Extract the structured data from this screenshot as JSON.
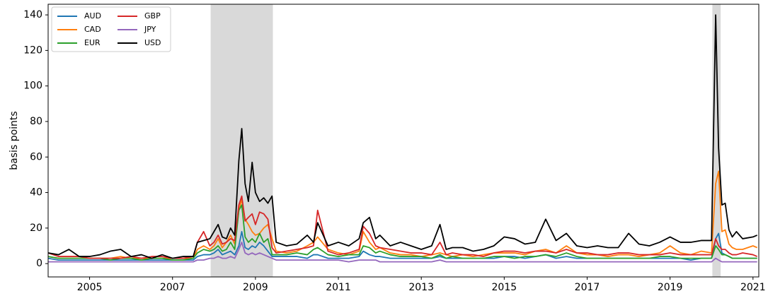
{
  "chart_data": {
    "type": "line",
    "y_label": "basis points",
    "x": [
      2004.0,
      2004.25,
      2004.5,
      2004.75,
      2005.0,
      2005.25,
      2005.5,
      2005.75,
      2006.0,
      2006.25,
      2006.5,
      2006.75,
      2007.0,
      2007.25,
      2007.5,
      2007.6,
      2007.75,
      2007.9,
      2008.0,
      2008.1,
      2008.2,
      2008.3,
      2008.4,
      2008.5,
      2008.6,
      2008.67,
      2008.75,
      2008.83,
      2008.92,
      2009.0,
      2009.1,
      2009.2,
      2009.3,
      2009.4,
      2009.5,
      2009.75,
      2010.0,
      2010.25,
      2010.4,
      2010.5,
      2010.75,
      2011.0,
      2011.25,
      2011.5,
      2011.6,
      2011.75,
      2011.9,
      2012.0,
      2012.25,
      2012.5,
      2012.75,
      2013.0,
      2013.25,
      2013.45,
      2013.6,
      2013.75,
      2014.0,
      2014.25,
      2014.5,
      2014.75,
      2015.0,
      2015.25,
      2015.5,
      2015.75,
      2016.0,
      2016.25,
      2016.5,
      2016.75,
      2017.0,
      2017.25,
      2017.5,
      2017.75,
      2018.0,
      2018.25,
      2018.5,
      2018.75,
      2019.0,
      2019.25,
      2019.5,
      2019.75,
      2020.0,
      2020.1,
      2020.17,
      2020.25,
      2020.33,
      2020.42,
      2020.5,
      2020.6,
      2020.75,
      2021.0,
      2021.1
    ],
    "series": [
      {
        "name": "AUD",
        "color": "#1f77b4",
        "values": [
          3,
          2,
          2,
          2,
          2,
          2,
          2,
          2,
          2,
          2,
          2,
          2,
          2,
          2,
          2,
          4,
          5,
          5,
          6,
          8,
          5,
          6,
          7,
          5,
          10,
          18,
          9,
          8,
          10,
          9,
          12,
          10,
          7,
          4,
          4,
          4,
          4,
          3,
          5,
          5,
          3,
          3,
          3,
          4,
          7,
          5,
          4,
          4,
          3,
          3,
          3,
          3,
          3,
          4,
          3,
          3,
          3,
          3,
          3,
          3,
          4,
          4,
          3,
          4,
          5,
          3,
          4,
          3,
          3,
          3,
          3,
          3,
          3,
          3,
          3,
          3,
          3,
          3,
          2,
          3,
          3,
          14,
          17,
          6,
          5,
          4,
          3,
          3,
          3,
          3,
          3
        ]
      },
      {
        "name": "CAD",
        "color": "#ff7f0e",
        "values": [
          4,
          3,
          3,
          3,
          3,
          3,
          3,
          4,
          3,
          3,
          3,
          3,
          3,
          3,
          3,
          8,
          10,
          8,
          10,
          14,
          9,
          12,
          16,
          11,
          30,
          36,
          25,
          22,
          18,
          16,
          17,
          20,
          22,
          14,
          7,
          6,
          7,
          10,
          12,
          15,
          8,
          6,
          5,
          7,
          18,
          12,
          8,
          9,
          6,
          5,
          5,
          4,
          5,
          6,
          5,
          4,
          5,
          4,
          5,
          6,
          6,
          6,
          5,
          7,
          8,
          6,
          10,
          6,
          5,
          5,
          4,
          5,
          5,
          4,
          5,
          6,
          10,
          6,
          5,
          7,
          6,
          45,
          52,
          18,
          19,
          11,
          9,
          8,
          8,
          10,
          9
        ]
      },
      {
        "name": "EUR",
        "color": "#2ca02c",
        "values": [
          4,
          3,
          3,
          3,
          3,
          3,
          2,
          3,
          3,
          2,
          3,
          3,
          2,
          2,
          3,
          6,
          8,
          7,
          8,
          10,
          7,
          8,
          12,
          8,
          30,
          33,
          15,
          12,
          14,
          12,
          17,
          12,
          14,
          5,
          5,
          5,
          6,
          5,
          8,
          9,
          5,
          4,
          5,
          5,
          10,
          9,
          6,
          7,
          5,
          4,
          4,
          4,
          3,
          5,
          3,
          4,
          3,
          3,
          3,
          4,
          4,
          3,
          4,
          4,
          5,
          4,
          6,
          4,
          3,
          3,
          3,
          3,
          3,
          3,
          3,
          4,
          4,
          3,
          3,
          3,
          3,
          10,
          8,
          5,
          5,
          4,
          3,
          3,
          3,
          3,
          3
        ]
      },
      {
        "name": "GBP",
        "color": "#d62728",
        "values": [
          6,
          4,
          4,
          4,
          3,
          3,
          3,
          3,
          4,
          3,
          4,
          4,
          3,
          3,
          4,
          12,
          18,
          10,
          12,
          16,
          11,
          12,
          14,
          13,
          33,
          38,
          24,
          26,
          28,
          22,
          29,
          28,
          25,
          9,
          6,
          7,
          8,
          9,
          10,
          30,
          7,
          5,
          6,
          8,
          21,
          17,
          10,
          9,
          8,
          7,
          6,
          6,
          5,
          12,
          5,
          6,
          5,
          5,
          4,
          6,
          7,
          7,
          6,
          7,
          7,
          6,
          8,
          6,
          6,
          5,
          5,
          6,
          6,
          5,
          5,
          5,
          6,
          5,
          5,
          5,
          5,
          14,
          10,
          8,
          8,
          6,
          5,
          5,
          6,
          5,
          4
        ]
      },
      {
        "name": "JPY",
        "color": "#9467bd",
        "values": [
          1,
          1,
          1,
          1,
          1,
          1,
          1,
          1,
          1,
          1,
          1,
          1,
          1,
          1,
          1,
          2,
          2,
          3,
          3,
          4,
          3,
          3,
          4,
          3,
          8,
          12,
          6,
          5,
          6,
          5,
          6,
          5,
          4,
          3,
          2,
          2,
          2,
          2,
          2,
          2,
          2,
          2,
          1,
          2,
          2,
          2,
          2,
          1,
          1,
          1,
          1,
          1,
          1,
          2,
          1,
          1,
          1,
          1,
          1,
          1,
          1,
          1,
          1,
          1,
          1,
          1,
          1,
          1,
          1,
          1,
          1,
          1,
          1,
          1,
          1,
          1,
          1,
          1,
          1,
          1,
          1,
          3,
          2,
          1,
          1,
          1,
          1,
          1,
          1,
          1,
          1
        ]
      },
      {
        "name": "USD",
        "color": "#000000",
        "values": [
          6,
          5,
          8,
          4,
          4,
          5,
          7,
          8,
          4,
          5,
          3,
          5,
          3,
          4,
          4,
          12,
          13,
          14,
          18,
          22,
          15,
          14,
          20,
          16,
          58,
          76,
          45,
          35,
          57,
          40,
          35,
          37,
          34,
          38,
          12,
          10,
          11,
          16,
          12,
          23,
          10,
          12,
          10,
          14,
          23,
          26,
          14,
          16,
          10,
          12,
          10,
          8,
          10,
          22,
          8,
          9,
          9,
          7,
          8,
          10,
          15,
          14,
          11,
          12,
          25,
          13,
          17,
          10,
          9,
          10,
          9,
          9,
          17,
          11,
          10,
          12,
          15,
          12,
          12,
          13,
          13,
          140,
          65,
          33,
          34,
          19,
          15,
          18,
          14,
          15,
          16
        ]
      }
    ],
    "shaded_regions": [
      [
        2007.92,
        2009.42
      ],
      [
        2020.02,
        2020.22
      ]
    ],
    "shade_color": "#d9d9d9",
    "xlim": [
      2004.0,
      2021.14
    ],
    "ylim": [
      -7.5,
      146
    ],
    "xticks": [
      2005,
      2007,
      2009,
      2011,
      2013,
      2015,
      2017,
      2019,
      2021
    ],
    "yticks": [
      0,
      20,
      40,
      60,
      80,
      100,
      120,
      140
    ],
    "legend": "upper left"
  }
}
